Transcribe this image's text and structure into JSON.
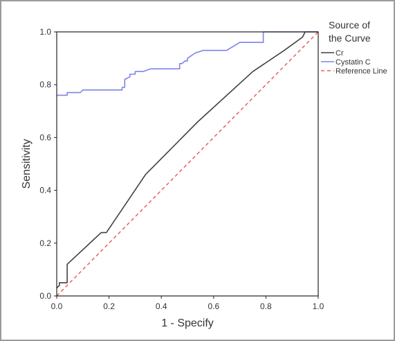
{
  "chart_data": {
    "type": "line",
    "title": "",
    "xlabel": "1 - Specify",
    "ylabel": "Sensitivity",
    "xlim": [
      0,
      1
    ],
    "ylim": [
      0,
      1
    ],
    "x_ticks": [
      "0.0",
      "0.2",
      "0.4",
      "0.6",
      "0.8",
      "1.0"
    ],
    "y_ticks": [
      "0.0",
      "0.2",
      "0.4",
      "0.6",
      "0.8",
      "1.0"
    ],
    "grid": false,
    "legend": {
      "title_lines": [
        "Source of",
        "the Curve"
      ],
      "placement": "right"
    },
    "series": [
      {
        "name": "Cr",
        "color": "#404040",
        "style": "solid",
        "points": [
          [
            0,
            0.03
          ],
          [
            0.01,
            0.04
          ],
          [
            0.01,
            0.05
          ],
          [
            0.04,
            0.05
          ],
          [
            0.04,
            0.12
          ],
          [
            0.17,
            0.24
          ],
          [
            0.19,
            0.24
          ],
          [
            0.34,
            0.46
          ],
          [
            0.54,
            0.66
          ],
          [
            0.75,
            0.85
          ],
          [
            0.87,
            0.93
          ],
          [
            0.94,
            0.98
          ],
          [
            0.95,
            1.0
          ],
          [
            1.0,
            1.0
          ]
        ]
      },
      {
        "name": "Cystatin C",
        "color": "#7b83e8",
        "style": "solid",
        "points": [
          [
            0,
            0.76
          ],
          [
            0.04,
            0.76
          ],
          [
            0.04,
            0.77
          ],
          [
            0.09,
            0.77
          ],
          [
            0.1,
            0.78
          ],
          [
            0.25,
            0.78
          ],
          [
            0.25,
            0.79
          ],
          [
            0.26,
            0.79
          ],
          [
            0.26,
            0.82
          ],
          [
            0.28,
            0.83
          ],
          [
            0.28,
            0.84
          ],
          [
            0.3,
            0.84
          ],
          [
            0.3,
            0.85
          ],
          [
            0.33,
            0.85
          ],
          [
            0.36,
            0.86
          ],
          [
            0.47,
            0.86
          ],
          [
            0.47,
            0.88
          ],
          [
            0.48,
            0.88
          ],
          [
            0.49,
            0.89
          ],
          [
            0.5,
            0.89
          ],
          [
            0.5,
            0.9
          ],
          [
            0.53,
            0.92
          ],
          [
            0.56,
            0.93
          ],
          [
            0.65,
            0.93
          ],
          [
            0.7,
            0.96
          ],
          [
            0.79,
            0.96
          ],
          [
            0.79,
            1.0
          ],
          [
            1.0,
            1.0
          ]
        ]
      },
      {
        "name": "Reference Line",
        "color": "#e8605a",
        "style": "dashed",
        "points": [
          [
            0,
            0
          ],
          [
            1,
            1
          ]
        ]
      }
    ]
  }
}
